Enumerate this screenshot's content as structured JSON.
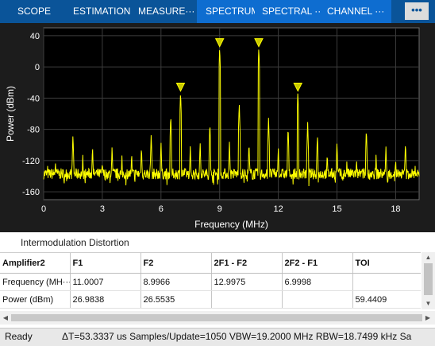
{
  "toolbar": {
    "tabs": [
      "SCOPE",
      "ESTIMATION",
      "MEASURE···",
      "SPECTRUM",
      "SPECTRAL ···",
      "CHANNEL ···"
    ],
    "selected_tabs": [
      3,
      4,
      5
    ],
    "overflow_label": "•••",
    "colors": {
      "bar": "#0a5499",
      "selected": "#0e6dd0"
    }
  },
  "chart_data": {
    "type": "line",
    "xlabel": "Frequency (MHz)",
    "ylabel": "Power (dBm)",
    "xlim": [
      0,
      19.2
    ],
    "ylim": [
      -170,
      50
    ],
    "x_ticks": [
      0,
      3,
      6,
      9,
      12,
      15,
      18
    ],
    "y_ticks": [
      40,
      0,
      -40,
      -80,
      -120,
      -160
    ],
    "grid": true,
    "noise_floor_dbm": -137,
    "line_color": "#ffff00",
    "spurs": [
      {
        "f": 0.2,
        "p": -125
      },
      {
        "f": 0.6,
        "p": -118
      },
      {
        "f": 1.0,
        "p": -125
      },
      {
        "f": 1.5,
        "p": -85
      },
      {
        "f": 2.0,
        "p": -112
      },
      {
        "f": 2.5,
        "p": -100
      },
      {
        "f": 3.0,
        "p": -118
      },
      {
        "f": 3.5,
        "p": -100
      },
      {
        "f": 4.0,
        "p": -112
      },
      {
        "f": 4.5,
        "p": -108
      },
      {
        "f": 5.0,
        "p": -100
      },
      {
        "f": 5.5,
        "p": -85
      },
      {
        "f": 6.0,
        "p": -95
      },
      {
        "f": 6.5,
        "p": -60
      },
      {
        "f": 7.0,
        "p": -30
      },
      {
        "f": 7.5,
        "p": -100
      },
      {
        "f": 8.0,
        "p": -95
      },
      {
        "f": 8.5,
        "p": -70
      },
      {
        "f": 9.0,
        "p": 27
      },
      {
        "f": 9.5,
        "p": -95
      },
      {
        "f": 10.0,
        "p": -45
      },
      {
        "f": 10.5,
        "p": -95
      },
      {
        "f": 11.0,
        "p": 27
      },
      {
        "f": 11.5,
        "p": -65
      },
      {
        "f": 12.0,
        "p": -100
      },
      {
        "f": 12.5,
        "p": -75
      },
      {
        "f": 13.0,
        "p": -30
      },
      {
        "f": 13.5,
        "p": -70
      },
      {
        "f": 14.0,
        "p": -85
      },
      {
        "f": 14.5,
        "p": -108
      },
      {
        "f": 15.0,
        "p": -95
      },
      {
        "f": 15.5,
        "p": -120
      },
      {
        "f": 16.0,
        "p": -115
      },
      {
        "f": 16.5,
        "p": -78
      },
      {
        "f": 17.0,
        "p": -110
      },
      {
        "f": 17.5,
        "p": -100
      },
      {
        "f": 18.0,
        "p": -115
      },
      {
        "f": 18.5,
        "p": -95
      },
      {
        "f": 19.0,
        "p": -125
      }
    ],
    "markers": [
      {
        "f": 7.0,
        "p": -30
      },
      {
        "f": 9.0,
        "p": 27
      },
      {
        "f": 11.0,
        "p": 27
      },
      {
        "f": 13.0,
        "p": -30
      }
    ]
  },
  "measurements": {
    "title": "Intermodulation Distortion",
    "columns": [
      "Amplifier2",
      "F1",
      "F2",
      "2F1 - F2",
      "2F2 - F1",
      "TOI"
    ],
    "rows": [
      [
        "Frequency (MH···",
        "11.0007",
        "8.9966",
        "12.9975",
        "6.9998",
        ""
      ],
      [
        "Power (dBm)",
        "26.9838",
        "26.5535",
        "",
        "",
        "59.4409"
      ]
    ]
  },
  "status": {
    "ready": "Ready",
    "details": "ΔT=53.3337 us  Samples/Update=1050  VBW=19.2000 MHz  RBW=18.7499 kHz  Sa"
  }
}
